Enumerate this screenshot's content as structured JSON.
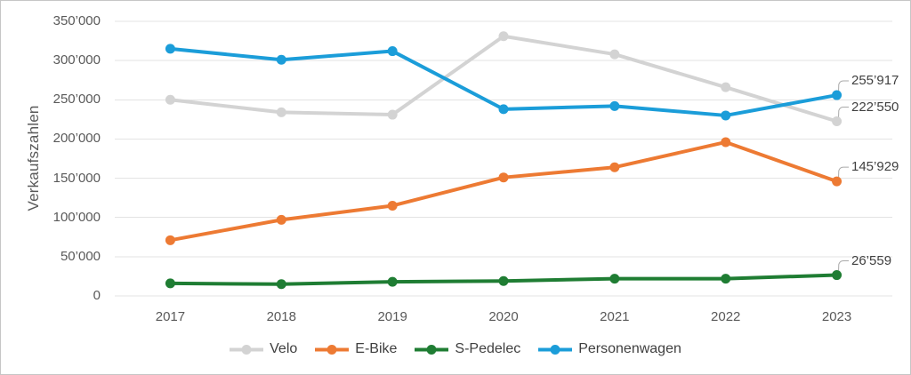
{
  "colors": {
    "background": "#ffffff",
    "border": "#c6c6c6",
    "grid": "#e3e3e3",
    "axis_text": "#595959",
    "label_text": "#404040",
    "leader_line": "#a9a9a9"
  },
  "chart_data": {
    "type": "line",
    "title": "",
    "ylabel": "Verkaufszahlen",
    "xlabel": "",
    "grid": true,
    "legend_position": "bottom",
    "marker": "circle",
    "categories": [
      "2017",
      "2018",
      "2019",
      "2020",
      "2021",
      "2022",
      "2023"
    ],
    "y_axis": {
      "min": 0,
      "max": 350000,
      "tick_step": 50000,
      "tick_labels": [
        "0",
        "50’000",
        "100’000",
        "150’000",
        "200’000",
        "250’000",
        "300’000",
        "350’000"
      ]
    },
    "series": [
      {
        "name": "Velo",
        "color": "#d3d3d3",
        "values": [
          250000,
          234000,
          231000,
          331000,
          308000,
          266000,
          222550
        ],
        "end_label": "222’550"
      },
      {
        "name": "E-Bike",
        "color": "#ed7a33",
        "values": [
          71000,
          97000,
          115000,
          151000,
          164000,
          196000,
          145929
        ],
        "end_label": "145’929"
      },
      {
        "name": "S-Pedelec",
        "color": "#1f7d33",
        "values": [
          16000,
          15000,
          18000,
          19000,
          22000,
          22000,
          26559
        ],
        "end_label": "26’559"
      },
      {
        "name": "Personenwagen",
        "color": "#1b9dd9",
        "values": [
          315000,
          301000,
          312000,
          238000,
          242000,
          230000,
          255917
        ],
        "end_label": "255’917"
      }
    ]
  }
}
